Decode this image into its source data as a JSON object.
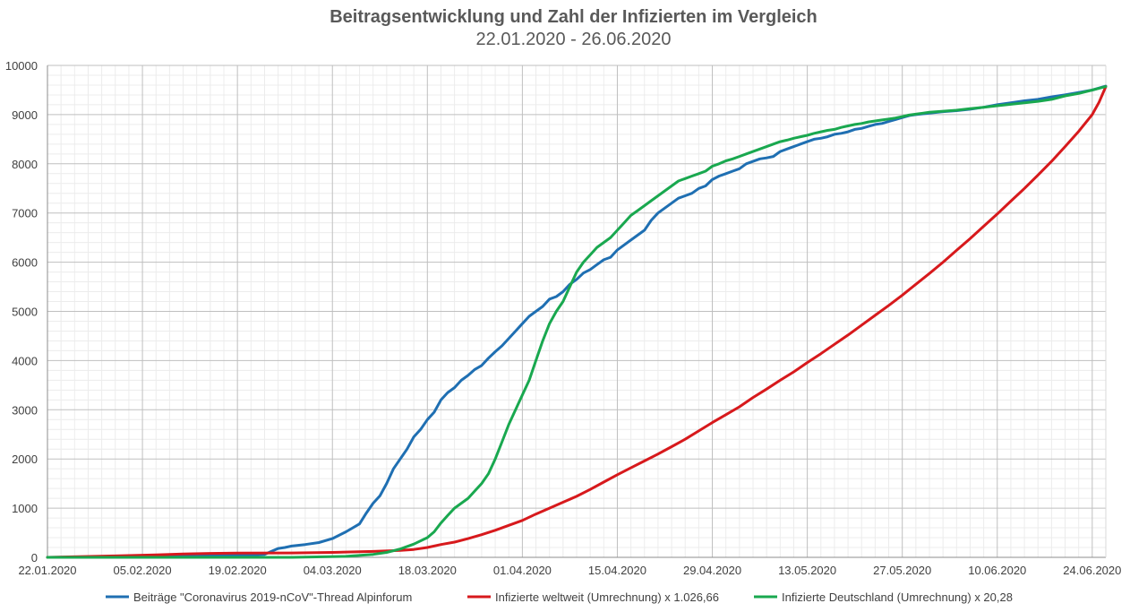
{
  "chart_data": {
    "type": "line",
    "title": "Beitragsentwicklung und Zahl der Infizierten im Vergleich",
    "subtitle": "22.01.2020 - 26.06.2020",
    "xlabel": "",
    "ylabel": "",
    "ylim": [
      0,
      10000
    ],
    "yticks": [
      "0",
      "1000",
      "2000",
      "3000",
      "4000",
      "5000",
      "6000",
      "7000",
      "8000",
      "9000",
      "10000"
    ],
    "xlim_days": [
      0,
      156
    ],
    "xticks": [
      {
        "day": 0,
        "label": "22.01.2020"
      },
      {
        "day": 14,
        "label": "05.02.2020"
      },
      {
        "day": 28,
        "label": "19.02.2020"
      },
      {
        "day": 42,
        "label": "04.03.2020"
      },
      {
        "day": 56,
        "label": "18.03.2020"
      },
      {
        "day": 70,
        "label": "01.04.2020"
      },
      {
        "day": 84,
        "label": "15.04.2020"
      },
      {
        "day": 98,
        "label": "29.04.2020"
      },
      {
        "day": 112,
        "label": "13.05.2020"
      },
      {
        "day": 126,
        "label": "27.05.2020"
      },
      {
        "day": 140,
        "label": "10.06.2020"
      },
      {
        "day": 154,
        "label": "24.06.2020"
      }
    ],
    "grid": true,
    "legend": "bottom",
    "series": [
      {
        "name": "Beiträge \"Coronavirus 2019-nCoV\"-Thread Alpinforum",
        "color": "#1f6fb2",
        "points": [
          [
            0,
            0
          ],
          [
            10,
            10
          ],
          [
            20,
            20
          ],
          [
            28,
            40
          ],
          [
            32,
            60
          ],
          [
            33,
            120
          ],
          [
            34,
            180
          ],
          [
            35,
            200
          ],
          [
            36,
            230
          ],
          [
            38,
            260
          ],
          [
            40,
            300
          ],
          [
            42,
            380
          ],
          [
            44,
            520
          ],
          [
            46,
            680
          ],
          [
            47,
            900
          ],
          [
            48,
            1100
          ],
          [
            49,
            1250
          ],
          [
            50,
            1500
          ],
          [
            51,
            1800
          ],
          [
            52,
            2000
          ],
          [
            53,
            2200
          ],
          [
            54,
            2450
          ],
          [
            55,
            2600
          ],
          [
            56,
            2800
          ],
          [
            57,
            2950
          ],
          [
            58,
            3200
          ],
          [
            59,
            3350
          ],
          [
            60,
            3450
          ],
          [
            61,
            3600
          ],
          [
            62,
            3700
          ],
          [
            63,
            3820
          ],
          [
            64,
            3900
          ],
          [
            65,
            4050
          ],
          [
            66,
            4180
          ],
          [
            67,
            4300
          ],
          [
            68,
            4450
          ],
          [
            69,
            4600
          ],
          [
            70,
            4750
          ],
          [
            71,
            4900
          ],
          [
            72,
            5000
          ],
          [
            73,
            5100
          ],
          [
            74,
            5250
          ],
          [
            75,
            5300
          ],
          [
            76,
            5400
          ],
          [
            77,
            5550
          ],
          [
            78,
            5650
          ],
          [
            79,
            5780
          ],
          [
            80,
            5850
          ],
          [
            81,
            5950
          ],
          [
            82,
            6050
          ],
          [
            83,
            6100
          ],
          [
            84,
            6250
          ],
          [
            85,
            6350
          ],
          [
            86,
            6450
          ],
          [
            87,
            6550
          ],
          [
            88,
            6650
          ],
          [
            89,
            6850
          ],
          [
            90,
            7000
          ],
          [
            91,
            7100
          ],
          [
            92,
            7200
          ],
          [
            93,
            7300
          ],
          [
            94,
            7350
          ],
          [
            95,
            7400
          ],
          [
            96,
            7500
          ],
          [
            97,
            7550
          ],
          [
            98,
            7680
          ],
          [
            99,
            7750
          ],
          [
            100,
            7800
          ],
          [
            101,
            7850
          ],
          [
            102,
            7900
          ],
          [
            103,
            8000
          ],
          [
            104,
            8050
          ],
          [
            105,
            8100
          ],
          [
            106,
            8120
          ],
          [
            107,
            8150
          ],
          [
            108,
            8250
          ],
          [
            109,
            8300
          ],
          [
            110,
            8350
          ],
          [
            111,
            8400
          ],
          [
            112,
            8450
          ],
          [
            113,
            8500
          ],
          [
            114,
            8520
          ],
          [
            115,
            8550
          ],
          [
            116,
            8600
          ],
          [
            117,
            8620
          ],
          [
            118,
            8650
          ],
          [
            119,
            8700
          ],
          [
            120,
            8720
          ],
          [
            121,
            8760
          ],
          [
            122,
            8800
          ],
          [
            123,
            8820
          ],
          [
            124,
            8860
          ],
          [
            125,
            8900
          ],
          [
            126,
            8940
          ],
          [
            127,
            8980
          ],
          [
            128,
            9000
          ],
          [
            130,
            9030
          ],
          [
            132,
            9060
          ],
          [
            134,
            9080
          ],
          [
            136,
            9110
          ],
          [
            138,
            9150
          ],
          [
            140,
            9200
          ],
          [
            142,
            9240
          ],
          [
            144,
            9280
          ],
          [
            146,
            9310
          ],
          [
            148,
            9360
          ],
          [
            150,
            9400
          ],
          [
            152,
            9450
          ],
          [
            154,
            9500
          ],
          [
            156,
            9580
          ]
        ]
      },
      {
        "name": "Infizierte weltweit (Umrechnung) x 1.026,66",
        "color": "#d7191c",
        "points": [
          [
            0,
            0
          ],
          [
            10,
            30
          ],
          [
            16,
            50
          ],
          [
            20,
            70
          ],
          [
            24,
            80
          ],
          [
            28,
            85
          ],
          [
            36,
            90
          ],
          [
            42,
            100
          ],
          [
            48,
            120
          ],
          [
            52,
            140
          ],
          [
            54,
            160
          ],
          [
            56,
            200
          ],
          [
            58,
            260
          ],
          [
            60,
            310
          ],
          [
            62,
            380
          ],
          [
            64,
            460
          ],
          [
            66,
            550
          ],
          [
            68,
            650
          ],
          [
            70,
            750
          ],
          [
            72,
            880
          ],
          [
            74,
            1000
          ],
          [
            76,
            1120
          ],
          [
            78,
            1240
          ],
          [
            80,
            1380
          ],
          [
            82,
            1530
          ],
          [
            84,
            1680
          ],
          [
            86,
            1820
          ],
          [
            88,
            1960
          ],
          [
            90,
            2100
          ],
          [
            92,
            2250
          ],
          [
            94,
            2400
          ],
          [
            96,
            2570
          ],
          [
            98,
            2740
          ],
          [
            100,
            2900
          ],
          [
            102,
            3060
          ],
          [
            104,
            3250
          ],
          [
            106,
            3420
          ],
          [
            108,
            3600
          ],
          [
            110,
            3770
          ],
          [
            112,
            3960
          ],
          [
            114,
            4140
          ],
          [
            116,
            4330
          ],
          [
            118,
            4520
          ],
          [
            120,
            4720
          ],
          [
            122,
            4920
          ],
          [
            124,
            5120
          ],
          [
            126,
            5330
          ],
          [
            128,
            5550
          ],
          [
            130,
            5770
          ],
          [
            132,
            6000
          ],
          [
            134,
            6240
          ],
          [
            136,
            6480
          ],
          [
            138,
            6730
          ],
          [
            140,
            6980
          ],
          [
            142,
            7240
          ],
          [
            144,
            7500
          ],
          [
            146,
            7770
          ],
          [
            148,
            8050
          ],
          [
            150,
            8350
          ],
          [
            152,
            8660
          ],
          [
            154,
            9000
          ],
          [
            155,
            9250
          ],
          [
            156,
            9570
          ]
        ]
      },
      {
        "name": "Infizierte Deutschland (Umrechnung) x 20,28",
        "color": "#19a84f",
        "points": [
          [
            0,
            0
          ],
          [
            20,
            0
          ],
          [
            36,
            0
          ],
          [
            44,
            20
          ],
          [
            48,
            60
          ],
          [
            50,
            100
          ],
          [
            52,
            170
          ],
          [
            54,
            270
          ],
          [
            56,
            400
          ],
          [
            57,
            520
          ],
          [
            58,
            700
          ],
          [
            59,
            850
          ],
          [
            60,
            1000
          ],
          [
            61,
            1100
          ],
          [
            62,
            1200
          ],
          [
            63,
            1350
          ],
          [
            64,
            1500
          ],
          [
            65,
            1700
          ],
          [
            66,
            2000
          ],
          [
            67,
            2350
          ],
          [
            68,
            2700
          ],
          [
            69,
            3000
          ],
          [
            70,
            3300
          ],
          [
            71,
            3600
          ],
          [
            72,
            4000
          ],
          [
            73,
            4400
          ],
          [
            74,
            4750
          ],
          [
            75,
            5000
          ],
          [
            76,
            5200
          ],
          [
            77,
            5500
          ],
          [
            78,
            5800
          ],
          [
            79,
            6000
          ],
          [
            80,
            6150
          ],
          [
            81,
            6300
          ],
          [
            82,
            6400
          ],
          [
            83,
            6500
          ],
          [
            84,
            6650
          ],
          [
            85,
            6800
          ],
          [
            86,
            6950
          ],
          [
            87,
            7050
          ],
          [
            88,
            7150
          ],
          [
            89,
            7250
          ],
          [
            90,
            7350
          ],
          [
            91,
            7450
          ],
          [
            92,
            7550
          ],
          [
            93,
            7650
          ],
          [
            94,
            7700
          ],
          [
            95,
            7750
          ],
          [
            96,
            7800
          ],
          [
            97,
            7850
          ],
          [
            98,
            7950
          ],
          [
            99,
            8000
          ],
          [
            100,
            8060
          ],
          [
            101,
            8100
          ],
          [
            102,
            8150
          ],
          [
            103,
            8200
          ],
          [
            104,
            8250
          ],
          [
            105,
            8300
          ],
          [
            106,
            8350
          ],
          [
            107,
            8400
          ],
          [
            108,
            8450
          ],
          [
            109,
            8480
          ],
          [
            110,
            8520
          ],
          [
            111,
            8550
          ],
          [
            112,
            8580
          ],
          [
            113,
            8620
          ],
          [
            114,
            8650
          ],
          [
            115,
            8680
          ],
          [
            116,
            8700
          ],
          [
            117,
            8740
          ],
          [
            118,
            8770
          ],
          [
            119,
            8800
          ],
          [
            120,
            8820
          ],
          [
            121,
            8850
          ],
          [
            122,
            8870
          ],
          [
            123,
            8890
          ],
          [
            124,
            8910
          ],
          [
            125,
            8930
          ],
          [
            126,
            8960
          ],
          [
            127,
            8990
          ],
          [
            128,
            9010
          ],
          [
            129,
            9030
          ],
          [
            130,
            9050
          ],
          [
            132,
            9070
          ],
          [
            134,
            9090
          ],
          [
            136,
            9120
          ],
          [
            138,
            9150
          ],
          [
            140,
            9180
          ],
          [
            142,
            9210
          ],
          [
            144,
            9240
          ],
          [
            146,
            9270
          ],
          [
            148,
            9310
          ],
          [
            150,
            9380
          ],
          [
            152,
            9430
          ],
          [
            154,
            9500
          ],
          [
            156,
            9570
          ]
        ]
      }
    ]
  }
}
